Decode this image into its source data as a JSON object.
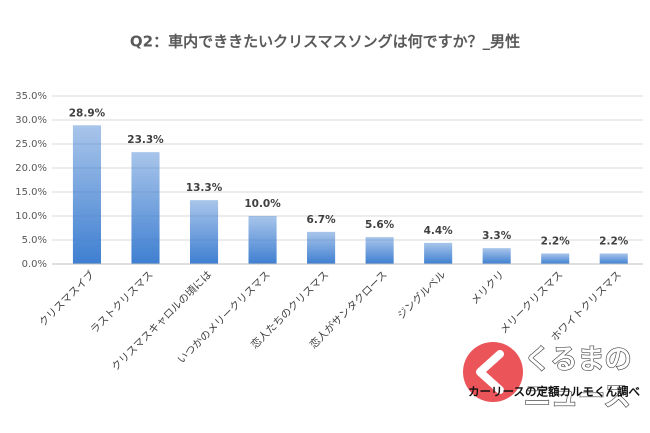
{
  "chart_data": {
    "type": "bar",
    "title": "Q2：車内でききたいクリスマスソングは何ですか？_男性",
    "categories": [
      "クリスマスイブ",
      "ラストクリスマス",
      "クリスマスキャロルの頃には",
      "いつかのメリークリスマス",
      "恋人たちのクリスマス",
      "恋人がサンタクロース",
      "ジングルベル",
      "メリクリ",
      "メリークリスマス",
      "ホワイトクリスマス"
    ],
    "values": [
      28.9,
      23.3,
      13.3,
      10.0,
      6.7,
      5.6,
      4.4,
      3.3,
      2.2,
      2.2
    ],
    "value_labels": [
      "28.9%",
      "23.3%",
      "13.3%",
      "10.0%",
      "6.7%",
      "5.6%",
      "4.4%",
      "3.3%",
      "2.2%",
      "2.2%"
    ],
    "color": "#3f7fd1",
    "ylim": [
      0,
      35
    ],
    "yticks": [
      {
        "value": 0,
        "label": "0.0%"
      },
      {
        "value": 5,
        "label": "5.0%"
      },
      {
        "value": 10,
        "label": "10.0%"
      },
      {
        "value": 15,
        "label": "15.0%"
      },
      {
        "value": 20,
        "label": "20.0%"
      },
      {
        "value": 25,
        "label": "25.0%"
      },
      {
        "value": 30,
        "label": "30.0%"
      },
      {
        "value": 35,
        "label": "35.0%"
      }
    ],
    "grid": true,
    "source": "カーリースの定額カルモくん調べ",
    "logo": [
      "くるまの",
      "ニュース"
    ]
  }
}
